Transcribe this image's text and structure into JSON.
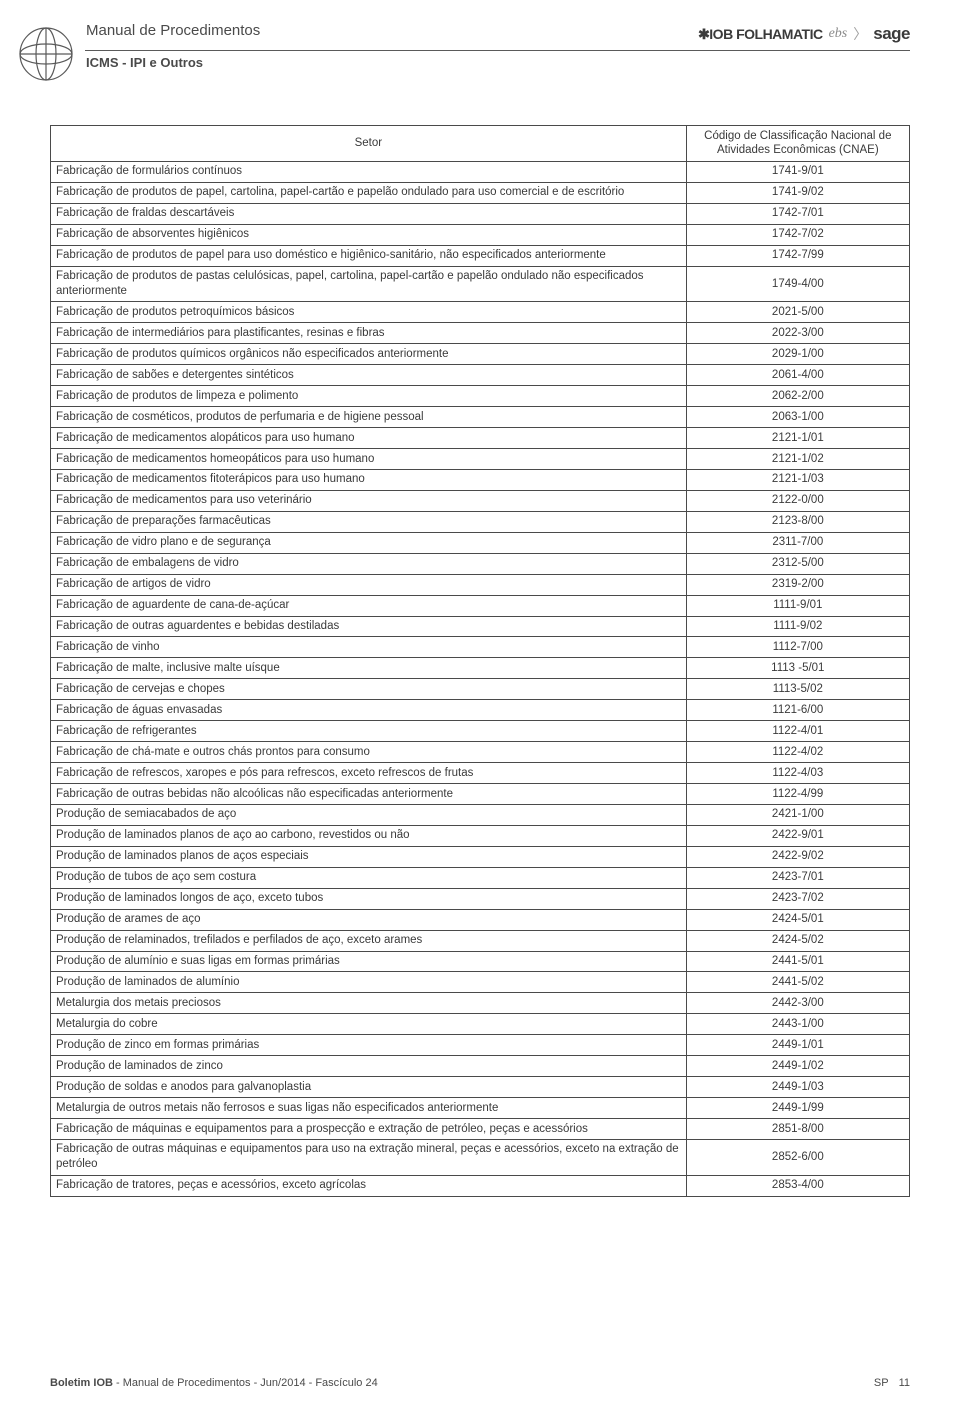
{
  "header": {
    "title": "Manual de Procedimentos",
    "subtitle": "ICMS - IPI e Outros",
    "brand_iob": "✱IOB FOLHAMATIC",
    "brand_ebs": "ebs",
    "brand_sep1": "〉",
    "brand_sage": "sage"
  },
  "table": {
    "col_setor": "Setor",
    "col_code": "Código de Classificação Nacional de Atividades Econômicas (CNAE)",
    "rows": [
      {
        "s": "Fabricação de formulários contínuos",
        "c": "1741-9/01"
      },
      {
        "s": "Fabricação de produtos de papel, cartolina, papel-cartão e papelão ondulado para uso comercial e de escritório",
        "c": "1741-9/02"
      },
      {
        "s": "Fabricação de fraldas descartáveis",
        "c": "1742-7/01"
      },
      {
        "s": "Fabricação de absorventes higiênicos",
        "c": "1742-7/02"
      },
      {
        "s": "Fabricação de produtos de papel para uso doméstico e higiênico-sanitário, não especificados anteriormente",
        "c": "1742-7/99"
      },
      {
        "s": "Fabricação de produtos de pastas celulósicas, papel, cartolina, papel-cartão e papelão ondulado não especificados anteriormente",
        "c": "1749-4/00"
      },
      {
        "s": "Fabricação de produtos petroquímicos básicos",
        "c": "2021-5/00"
      },
      {
        "s": "Fabricação de intermediários para plastificantes, resinas e fibras",
        "c": "2022-3/00"
      },
      {
        "s": "Fabricação de produtos químicos orgânicos não especificados anteriormente",
        "c": "2029-1/00"
      },
      {
        "s": "Fabricação de sabões e detergentes sintéticos",
        "c": "2061-4/00"
      },
      {
        "s": "Fabricação de produtos de limpeza e polimento",
        "c": "2062-2/00"
      },
      {
        "s": "Fabricação de cosméticos, produtos de perfumaria e de higiene pessoal",
        "c": "2063-1/00"
      },
      {
        "s": "Fabricação de medicamentos alopáticos para uso humano",
        "c": "2121-1/01"
      },
      {
        "s": "Fabricação de medicamentos homeopáticos para uso humano",
        "c": "2121-1/02"
      },
      {
        "s": "Fabricação de medicamentos fitoterápicos para uso humano",
        "c": "2121-1/03"
      },
      {
        "s": "Fabricação de medicamentos para uso veterinário",
        "c": "2122-0/00"
      },
      {
        "s": "Fabricação de preparações farmacêuticas",
        "c": "2123-8/00"
      },
      {
        "s": "Fabricação de vidro plano e de segurança",
        "c": "2311-7/00"
      },
      {
        "s": "Fabricação de embalagens de vidro",
        "c": "2312-5/00"
      },
      {
        "s": "Fabricação de artigos de vidro",
        "c": "2319-2/00"
      },
      {
        "s": "Fabricação de aguardente de cana-de-açúcar",
        "c": "1111-9/01"
      },
      {
        "s": "Fabricação de outras aguardentes e bebidas destiladas",
        "c": "1111-9/02"
      },
      {
        "s": "Fabricação de vinho",
        "c": "1112-7/00"
      },
      {
        "s": "Fabricação de malte, inclusive malte uísque",
        "c": "1113 -5/01"
      },
      {
        "s": "Fabricação de cervejas e chopes",
        "c": "1113-5/02"
      },
      {
        "s": "Fabricação de águas envasadas",
        "c": "1121-6/00"
      },
      {
        "s": "Fabricação de refrigerantes",
        "c": "1122-4/01"
      },
      {
        "s": "Fabricação de chá-mate e outros chás prontos para consumo",
        "c": "1122-4/02"
      },
      {
        "s": "Fabricação de refrescos, xaropes e pós para refrescos, exceto refrescos de frutas",
        "c": "1122-4/03"
      },
      {
        "s": "Fabricação de outras bebidas não alcoólicas não especificadas anteriormente",
        "c": "1122-4/99"
      },
      {
        "s": "Produção de semiacabados de aço",
        "c": "2421-1/00"
      },
      {
        "s": "Produção de laminados planos de aço ao carbono, revestidos ou não",
        "c": "2422-9/01"
      },
      {
        "s": "Produção de laminados planos de aços especiais",
        "c": "2422-9/02"
      },
      {
        "s": "Produção de tubos de aço sem costura",
        "c": "2423-7/01"
      },
      {
        "s": "Produção de laminados longos de aço, exceto tubos",
        "c": "2423-7/02"
      },
      {
        "s": "Produção de arames de aço",
        "c": "2424-5/01"
      },
      {
        "s": "Produção de relaminados, trefilados e perfilados de aço, exceto arames",
        "c": "2424-5/02"
      },
      {
        "s": "Produção de alumínio e suas ligas em formas primárias",
        "c": "2441-5/01"
      },
      {
        "s": "Produção de laminados de alumínio",
        "c": "2441-5/02"
      },
      {
        "s": "Metalurgia dos metais preciosos",
        "c": "2442-3/00"
      },
      {
        "s": "Metalurgia do cobre",
        "c": "2443-1/00"
      },
      {
        "s": "Produção de zinco em formas primárias",
        "c": "2449-1/01"
      },
      {
        "s": "Produção de laminados de zinco",
        "c": "2449-1/02"
      },
      {
        "s": "Produção de soldas e anodos para galvanoplastia",
        "c": "2449-1/03"
      },
      {
        "s": "Metalurgia de outros metais não ferrosos e suas ligas não especificados anteriormente",
        "c": "2449-1/99"
      },
      {
        "s": "Fabricação de máquinas e equipamentos para a prospecção e extração de petróleo, peças e acessórios",
        "c": "2851-8/00"
      },
      {
        "s": "Fabricação de outras máquinas e equipamentos para uso na extração mineral, peças e acessórios, exceto na extração de petróleo",
        "c": "2852-6/00"
      },
      {
        "s": "Fabricação de tratores, peças e acessórios, exceto agrícolas",
        "c": "2853-4/00"
      }
    ]
  },
  "footer": {
    "boletim": "Boletim IOB",
    "rest": " - Manual de Procedimentos - Jun/2014 - Fascículo 24",
    "region": "SP",
    "page": "11"
  }
}
